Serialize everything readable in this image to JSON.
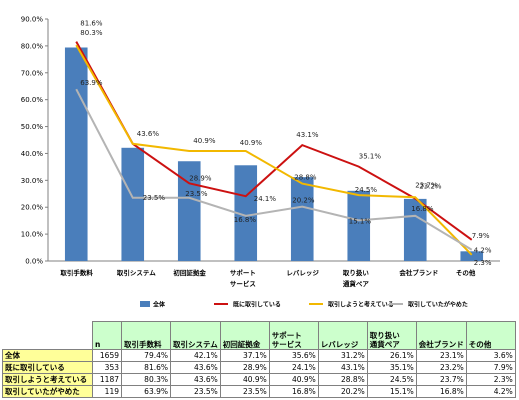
{
  "chart_data": {
    "type": "bar",
    "title": "",
    "xlabel": "",
    "ylabel": "",
    "ylim": [
      0,
      90
    ],
    "yticks": [
      "0.0%",
      "10.0%",
      "20.0%",
      "30.0%",
      "40.0%",
      "50.0%",
      "60.0%",
      "70.0%",
      "80.0%",
      "90.0%"
    ],
    "categories": [
      [
        "取引手数料"
      ],
      [
        "取引システム"
      ],
      [
        "初回証拠金"
      ],
      [
        "サポート",
        "サービス"
      ],
      [
        "レバレッジ"
      ],
      [
        "取り扱い",
        "通貨ペア"
      ],
      [
        "会社ブランド"
      ],
      [
        "その他"
      ]
    ],
    "series": [
      {
        "name": "全体",
        "kind": "bar",
        "color": "#4a7ebb",
        "values": [
          79.4,
          42.1,
          37.1,
          35.6,
          31.2,
          26.1,
          23.1,
          3.6
        ],
        "labels": []
      },
      {
        "name": "既に取引している",
        "kind": "line",
        "color": "#cc1111",
        "values": [
          81.6,
          43.6,
          28.9,
          24.1,
          43.1,
          35.1,
          23.2,
          7.9
        ],
        "labels": [
          "81.6%",
          "43.6%",
          "28.9%",
          "24.1%",
          "43.1%",
          "35.1%",
          "23.2%",
          "7.9%"
        ]
      },
      {
        "name": "取引しようと考えている",
        "kind": "line",
        "color": "#f2b800",
        "values": [
          80.3,
          43.6,
          40.9,
          40.9,
          28.8,
          24.5,
          23.7,
          2.3
        ],
        "labels": [
          "80.3%",
          "",
          "40.9%",
          "40.9%",
          "28.8%",
          "24.5%",
          "23.7%",
          "2.3%"
        ]
      },
      {
        "name": "取引していたがやめた",
        "kind": "line",
        "color": "#b4b4b4",
        "values": [
          63.9,
          23.5,
          23.5,
          16.8,
          20.2,
          15.1,
          16.8,
          4.2
        ],
        "labels": [
          "63.9%",
          "23.5%",
          "23.5%",
          "16.8%",
          "20.2%",
          "15.1%",
          "16.8%",
          "4.2%"
        ]
      }
    ],
    "legend_position": "bottom",
    "grid": false
  },
  "table": {
    "n_label": "n",
    "headers": [
      [
        "取引手数料"
      ],
      [
        "取引システム"
      ],
      [
        "初回証拠金"
      ],
      [
        "サポート",
        "サービス"
      ],
      [
        "レバレッジ"
      ],
      [
        "取り扱い",
        "通貨ペア"
      ],
      [
        "会社ブランド"
      ],
      [
        "その他"
      ]
    ],
    "rows": [
      {
        "label": "全体",
        "n": "1659",
        "values": [
          "79.4%",
          "42.1%",
          "37.1%",
          "35.6%",
          "31.2%",
          "26.1%",
          "23.1%",
          "3.6%"
        ]
      },
      {
        "label": "既に取引している",
        "n": "353",
        "values": [
          "81.6%",
          "43.6%",
          "28.9%",
          "24.1%",
          "43.1%",
          "35.1%",
          "23.2%",
          "7.9%"
        ]
      },
      {
        "label": "取引しようと考えている",
        "n": "1187",
        "values": [
          "80.3%",
          "43.6%",
          "40.9%",
          "40.9%",
          "28.8%",
          "24.5%",
          "23.7%",
          "2.3%"
        ]
      },
      {
        "label": "取引していたがやめた",
        "n": "119",
        "values": [
          "63.9%",
          "23.5%",
          "23.5%",
          "16.8%",
          "20.2%",
          "15.1%",
          "16.8%",
          "4.2%"
        ]
      }
    ]
  }
}
